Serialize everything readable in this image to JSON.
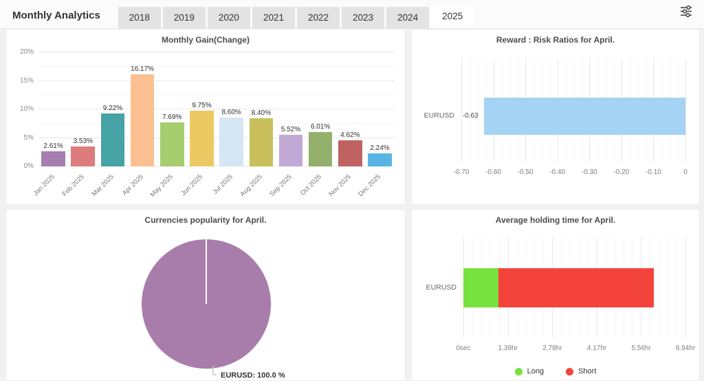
{
  "header": {
    "title": "Monthly Analytics",
    "tabs": [
      "2018",
      "2019",
      "2020",
      "2021",
      "2022",
      "2023",
      "2024",
      "2025"
    ],
    "active_tab": "2025",
    "filter_icon": "tune-sliders-icon"
  },
  "chart_data": [
    {
      "id": "monthly_gain",
      "type": "bar",
      "title": "Monthly Gain(Change)",
      "categories": [
        "Jan 2025",
        "Feb 2025",
        "Mar 2025",
        "Apr 2025",
        "May 2025",
        "Jun 2025",
        "Jul 2025",
        "Aug 2025",
        "Sep 2025",
        "Oct 2025",
        "Nov 2025",
        "Dec 2025"
      ],
      "values": [
        2.61,
        3.53,
        9.22,
        16.17,
        7.69,
        9.75,
        8.6,
        8.4,
        5.52,
        6.01,
        4.62,
        2.24
      ],
      "labels": [
        "2.61%",
        "3.53%",
        "9.22%",
        "16.17%",
        "7.69%",
        "9.75%",
        "8.60%",
        "8.40%",
        "5.52%",
        "6.01%",
        "4.62%",
        "2.24%"
      ],
      "colors": [
        "#a57fb2",
        "#dc7c7c",
        "#46a3a6",
        "#fac092",
        "#a6cd6e",
        "#ecc962",
        "#d5e6f4",
        "#c9bf5c",
        "#c2a9d5",
        "#93b06d",
        "#c16262",
        "#58b4e4"
      ],
      "xlabel": "",
      "ylabel": "",
      "ylim": [
        0,
        20
      ],
      "yticks": [
        "0%",
        "5%",
        "10%",
        "15%",
        "20%"
      ],
      "grid": true,
      "legend": "none"
    },
    {
      "id": "reward_risk",
      "type": "bar-horizontal",
      "title": "Reward : Risk Ratios for April.",
      "categories": [
        "EURUSD"
      ],
      "values": [
        -0.63
      ],
      "labels": [
        "-0.63"
      ],
      "bar_color": "#a5d3f3",
      "xlim": [
        -0.7,
        0
      ],
      "xticks": [
        {
          "v": -0.7,
          "label": "-0.70"
        },
        {
          "v": -0.6,
          "label": "-0.60"
        },
        {
          "v": -0.5,
          "label": "-0.50"
        },
        {
          "v": -0.4,
          "label": "-0.40"
        },
        {
          "v": -0.3,
          "label": "-0.30"
        },
        {
          "v": -0.2,
          "label": "-0.20"
        },
        {
          "v": -0.1,
          "label": "-0.10"
        },
        {
          "v": 0,
          "label": "0"
        }
      ],
      "grid": true,
      "legend": "none"
    },
    {
      "id": "currency_popularity",
      "type": "pie",
      "title": "Currencies popularity for April.",
      "slices": [
        {
          "name": "EURUSD",
          "value_pct": 100.0,
          "label": "EURUSD: 100.0 %",
          "color": "#a87dab"
        }
      ],
      "legend": "none"
    },
    {
      "id": "holding_time",
      "type": "stacked-bar-horizontal",
      "title": "Average holding time for April.",
      "categories": [
        "EURUSD"
      ],
      "series": [
        {
          "name": "Long",
          "start_hr": 0,
          "end_hr": 1.1,
          "color": "#77e13d"
        },
        {
          "name": "Short",
          "start_hr": 1.1,
          "end_hr": 5.95,
          "color": "#f4433a"
        }
      ],
      "xlim_hr": [
        0,
        6.94
      ],
      "xticks": [
        {
          "v": 0,
          "label": "0sec"
        },
        {
          "v": 1.39,
          "label": "1.39hr"
        },
        {
          "v": 2.78,
          "label": "2.78hr"
        },
        {
          "v": 4.17,
          "label": "4.17hr"
        },
        {
          "v": 5.56,
          "label": "5.56hr"
        },
        {
          "v": 6.94,
          "label": "6.94hr"
        }
      ],
      "legend": [
        {
          "name": "Long",
          "color": "#77e13d"
        },
        {
          "name": "Short",
          "color": "#f4433a"
        }
      ],
      "grid": true
    }
  ]
}
